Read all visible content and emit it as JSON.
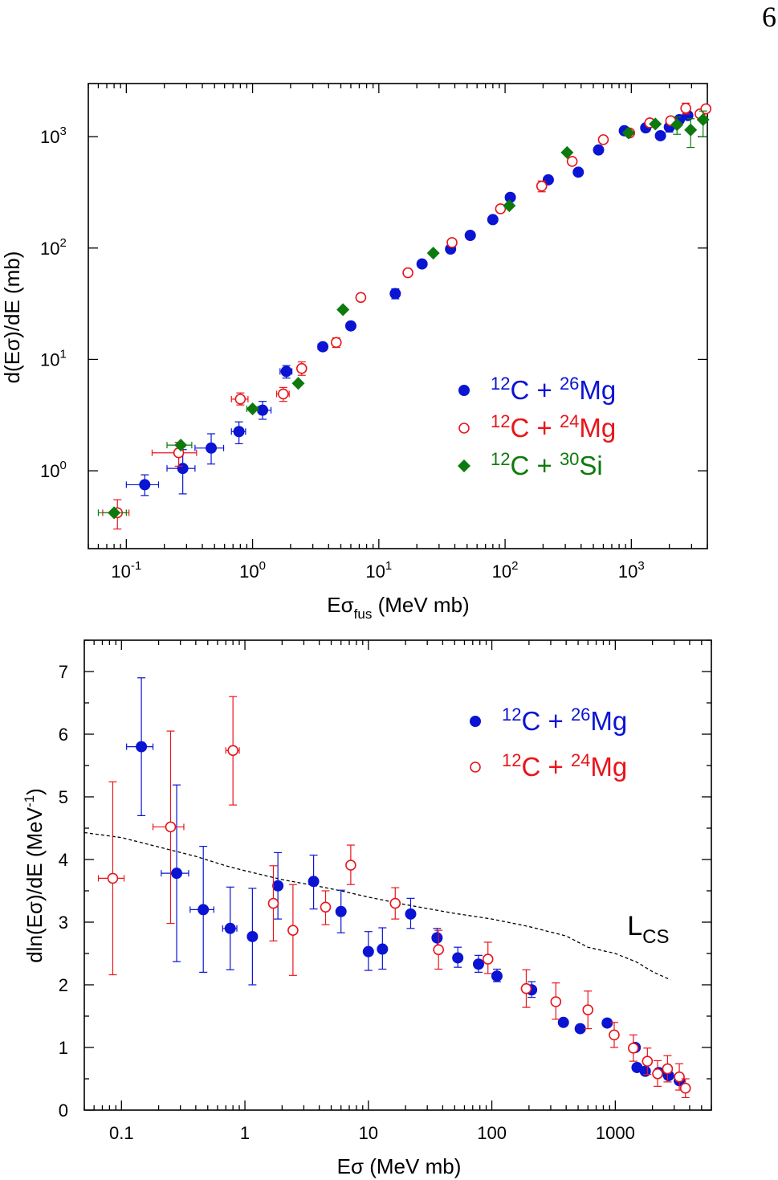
{
  "page_number": "6",
  "chart_data": [
    {
      "type": "scatter",
      "scale": "log-log",
      "xlabel": "Eσfus (MeV mb)",
      "xlabel_main": "Eσ",
      "xlabel_sub": "fus",
      "xlabel_units": " (MeV mb)",
      "ylabel": "d(Eσ)/dE  (mb)",
      "xlim": [
        0.05,
        4000
      ],
      "ylim": [
        0.2,
        3000
      ],
      "x_ticks": [
        {
          "value": 0.1,
          "base": "10",
          "exp": "-1"
        },
        {
          "value": 1,
          "base": "10",
          "exp": "0"
        },
        {
          "value": 10,
          "base": "10",
          "exp": "1"
        },
        {
          "value": 100,
          "base": "10",
          "exp": "2"
        },
        {
          "value": 1000,
          "base": "10",
          "exp": "3"
        }
      ],
      "y_ticks": [
        {
          "value": 1,
          "base": "10",
          "exp": "0"
        },
        {
          "value": 10,
          "base": "10",
          "exp": "1"
        },
        {
          "value": 100,
          "base": "10",
          "exp": "2"
        },
        {
          "value": 1000,
          "base": "10",
          "exp": "3"
        }
      ],
      "legend": "right-lower",
      "series": [
        {
          "name": "12C + 26Mg",
          "sup1": "12",
          "mid": "C + ",
          "sup2": "26",
          "tail": "Mg",
          "color": "#0a14d2",
          "marker": "filled-circle",
          "points": [
            {
              "x": 0.14,
              "y": 0.75,
              "xerr": 0.04,
              "ylo": 0.6,
              "yhi": 0.92
            },
            {
              "x": 0.28,
              "y": 1.05,
              "xerr": 0.07,
              "ylo": 0.62,
              "yhi": 1.55
            },
            {
              "x": 0.47,
              "y": 1.6,
              "xerr": 0.12,
              "ylo": 1.15,
              "yhi": 2.15
            },
            {
              "x": 0.78,
              "y": 2.25,
              "xerr": 0.1,
              "ylo": 1.75,
              "yhi": 2.75
            },
            {
              "x": 1.2,
              "y": 3.5,
              "xerr": 0.2,
              "ylo": 2.9,
              "yhi": 4.2
            },
            {
              "x": 1.85,
              "y": 7.8,
              "xerr": 0.2,
              "ylo": 6.8,
              "yhi": 8.8
            },
            {
              "x": 3.6,
              "y": 13,
              "xerr": 0.3,
              "ylo": 12,
              "yhi": 14
            },
            {
              "x": 6.0,
              "y": 20
            },
            {
              "x": 13.5,
              "y": 39,
              "ylo": 35,
              "yhi": 43
            },
            {
              "x": 22,
              "y": 72
            },
            {
              "x": 37,
              "y": 98
            },
            {
              "x": 53,
              "y": 130
            },
            {
              "x": 80,
              "y": 180
            },
            {
              "x": 110,
              "y": 285
            },
            {
              "x": 220,
              "y": 410
            },
            {
              "x": 380,
              "y": 480
            },
            {
              "x": 550,
              "y": 760
            },
            {
              "x": 880,
              "y": 1130
            },
            {
              "x": 1300,
              "y": 1200
            },
            {
              "x": 1700,
              "y": 1020
            },
            {
              "x": 2000,
              "y": 1220,
              "ylo": 1100,
              "yhi": 1350
            },
            {
              "x": 2400,
              "y": 1420
            },
            {
              "x": 2800,
              "y": 1550
            }
          ]
        },
        {
          "name": "12C + 24Mg",
          "sup1": "12",
          "mid": "C + ",
          "sup2": "24",
          "tail": "Mg",
          "color": "#e8151b",
          "marker": "open-circle",
          "points": [
            {
              "x": 0.085,
              "y": 0.42,
              "xerr": 0.02,
              "ylo": 0.3,
              "yhi": 0.55
            },
            {
              "x": 0.26,
              "y": 1.45,
              "xerr": 0.1,
              "ylo": 1.1,
              "yhi": 1.8
            },
            {
              "x": 0.8,
              "y": 4.4,
              "xerr": 0.12,
              "ylo": 3.9,
              "yhi": 5.0
            },
            {
              "x": 1.75,
              "y": 4.9,
              "xerr": 0.2,
              "ylo": 4.2,
              "yhi": 5.6
            },
            {
              "x": 2.45,
              "y": 8.3,
              "ylo": 7.2,
              "yhi": 9.5
            },
            {
              "x": 4.6,
              "y": 14.2,
              "ylo": 12.8,
              "yhi": 15.6
            },
            {
              "x": 7.2,
              "y": 36
            },
            {
              "x": 17,
              "y": 60
            },
            {
              "x": 38,
              "y": 112
            },
            {
              "x": 92,
              "y": 225
            },
            {
              "x": 195,
              "y": 360,
              "ylo": 320,
              "yhi": 400
            },
            {
              "x": 340,
              "y": 600
            },
            {
              "x": 600,
              "y": 940
            },
            {
              "x": 970,
              "y": 1080
            },
            {
              "x": 1400,
              "y": 1330
            },
            {
              "x": 2050,
              "y": 1390
            },
            {
              "x": 2700,
              "y": 1800,
              "ylo": 1600,
              "yhi": 2000
            },
            {
              "x": 3500,
              "y": 1600
            },
            {
              "x": 3900,
              "y": 1780
            }
          ]
        },
        {
          "name": "12C + 30Si",
          "sup1": "12",
          "mid": "C + ",
          "sup2": "30",
          "tail": "Si",
          "color": "#0d7a0d",
          "marker": "filled-diamond",
          "points": [
            {
              "x": 0.08,
              "y": 0.42,
              "xerr": 0.02
            },
            {
              "x": 0.27,
              "y": 1.7,
              "xerr": 0.06
            },
            {
              "x": 1.0,
              "y": 3.6,
              "xerr": 0.1
            },
            {
              "x": 2.3,
              "y": 6.1
            },
            {
              "x": 5.2,
              "y": 28
            },
            {
              "x": 27,
              "y": 90
            },
            {
              "x": 108,
              "y": 240
            },
            {
              "x": 310,
              "y": 720
            },
            {
              "x": 950,
              "y": 1080
            },
            {
              "x": 1550,
              "y": 1300
            },
            {
              "x": 2300,
              "y": 1280,
              "ylo": 1050,
              "yhi": 1500
            },
            {
              "x": 2950,
              "y": 1150,
              "ylo": 800,
              "yhi": 1450
            },
            {
              "x": 3700,
              "y": 1420,
              "ylo": 1000,
              "yhi": 1700
            }
          ]
        }
      ]
    },
    {
      "type": "scatter",
      "scale": "log-x",
      "xlabel": "Eσ (MeV mb)",
      "ylabel": "dln(Eσ)/dE  (MeV-1)",
      "ylabel_main": "dln(Eσ)/dE  (MeV",
      "ylabel_sup": "-1",
      "ylabel_end": ")",
      "xlim": [
        0.05,
        6000
      ],
      "ylim": [
        0,
        7.5
      ],
      "x_ticks": [
        {
          "value": 0.1,
          "label": "0.1"
        },
        {
          "value": 1,
          "label": "1"
        },
        {
          "value": 10,
          "label": "10"
        },
        {
          "value": 100,
          "label": "100"
        },
        {
          "value": 1000,
          "label": "1000"
        }
      ],
      "y_ticks": [
        {
          "value": 0,
          "label": "0"
        },
        {
          "value": 1,
          "label": "1"
        },
        {
          "value": 2,
          "label": "2"
        },
        {
          "value": 3,
          "label": "3"
        },
        {
          "value": 4,
          "label": "4"
        },
        {
          "value": 5,
          "label": "5"
        },
        {
          "value": 6,
          "label": "6"
        },
        {
          "value": 7,
          "label": "7"
        }
      ],
      "legend": "top-right",
      "annotation": {
        "main": "L",
        "sub": "CS",
        "x": 1250,
        "y": 2.95
      },
      "series": [
        {
          "name": "12C + 26Mg",
          "sup1": "12",
          "mid": "C + ",
          "sup2": "26",
          "tail": "Mg",
          "color": "#0a14d2",
          "marker": "filled-circle",
          "points": [
            {
              "x": 0.145,
              "y": 5.8,
              "xerr": 0.035,
              "ylo": 4.7,
              "yhi": 6.9
            },
            {
              "x": 0.28,
              "y": 3.78,
              "xerr": 0.07,
              "ylo": 2.37,
              "yhi": 5.19
            },
            {
              "x": 0.46,
              "y": 3.2,
              "xerr": 0.1,
              "ylo": 2.2,
              "yhi": 4.21
            },
            {
              "x": 0.76,
              "y": 2.9,
              "xerr": 0.1,
              "ylo": 2.24,
              "yhi": 3.56
            },
            {
              "x": 1.15,
              "y": 2.77,
              "ylo": 2.0,
              "yhi": 3.54
            },
            {
              "x": 1.85,
              "y": 3.58,
              "ylo": 3.05,
              "yhi": 4.11
            },
            {
              "x": 3.6,
              "y": 3.65,
              "ylo": 3.21,
              "yhi": 4.07
            },
            {
              "x": 6.0,
              "y": 3.17,
              "ylo": 2.83,
              "yhi": 3.51
            },
            {
              "x": 10,
              "y": 2.53,
              "ylo": 2.23,
              "yhi": 2.85
            },
            {
              "x": 13,
              "y": 2.57,
              "ylo": 2.25,
              "yhi": 2.91
            },
            {
              "x": 22,
              "y": 3.13,
              "ylo": 2.9,
              "yhi": 3.38
            },
            {
              "x": 36,
              "y": 2.75,
              "ylo": 2.55,
              "yhi": 2.9
            },
            {
              "x": 53,
              "y": 2.43,
              "ylo": 2.28,
              "yhi": 2.6
            },
            {
              "x": 78,
              "y": 2.33,
              "ylo": 2.2,
              "yhi": 2.47
            },
            {
              "x": 110,
              "y": 2.14,
              "ylo": 2.05,
              "yhi": 2.25
            },
            {
              "x": 210,
              "y": 1.92,
              "ylo": 1.8,
              "yhi": 2.05
            },
            {
              "x": 380,
              "y": 1.4
            },
            {
              "x": 520,
              "y": 1.3
            },
            {
              "x": 860,
              "y": 1.39
            },
            {
              "x": 1450,
              "y": 1.0
            },
            {
              "x": 1500,
              "y": 0.68
            },
            {
              "x": 1750,
              "y": 0.62
            },
            {
              "x": 2250,
              "y": 0.6
            },
            {
              "x": 2700,
              "y": 0.55
            },
            {
              "x": 3300,
              "y": 0.47
            }
          ]
        },
        {
          "name": "12C + 24Mg",
          "sup1": "12",
          "mid": "C + ",
          "sup2": "24",
          "tail": "Mg",
          "color": "#e8151b",
          "marker": "open-circle",
          "points": [
            {
              "x": 0.085,
              "y": 3.7,
              "xerr": 0.02,
              "ylo": 2.16,
              "yhi": 5.24
            },
            {
              "x": 0.25,
              "y": 4.52,
              "xerr": 0.07,
              "ylo": 2.98,
              "yhi": 6.05
            },
            {
              "x": 0.8,
              "y": 5.74,
              "xerr": 0.1,
              "ylo": 4.87,
              "yhi": 6.6
            },
            {
              "x": 1.7,
              "y": 3.3,
              "ylo": 2.7,
              "yhi": 3.9
            },
            {
              "x": 2.45,
              "y": 2.87,
              "ylo": 2.15,
              "yhi": 3.6
            },
            {
              "x": 4.5,
              "y": 3.24,
              "ylo": 2.96,
              "yhi": 3.5
            },
            {
              "x": 7.2,
              "y": 3.91,
              "ylo": 3.6,
              "yhi": 4.23
            },
            {
              "x": 16.5,
              "y": 3.3,
              "ylo": 3.05,
              "yhi": 3.55
            },
            {
              "x": 37,
              "y": 2.56,
              "ylo": 2.25,
              "yhi": 2.87
            },
            {
              "x": 93,
              "y": 2.41,
              "ylo": 2.18,
              "yhi": 2.68
            },
            {
              "x": 190,
              "y": 1.94,
              "ylo": 1.64,
              "yhi": 2.24
            },
            {
              "x": 330,
              "y": 1.73,
              "ylo": 1.45,
              "yhi": 2.03
            },
            {
              "x": 600,
              "y": 1.6,
              "ylo": 1.3,
              "yhi": 1.9
            },
            {
              "x": 980,
              "y": 1.2,
              "ylo": 1.0,
              "yhi": 1.4
            },
            {
              "x": 1400,
              "y": 0.99,
              "ylo": 0.78,
              "yhi": 1.2
            },
            {
              "x": 1820,
              "y": 0.78,
              "ylo": 0.57,
              "yhi": 0.99
            },
            {
              "x": 2200,
              "y": 0.58,
              "ylo": 0.38,
              "yhi": 0.79
            },
            {
              "x": 2650,
              "y": 0.66,
              "ylo": 0.45,
              "yhi": 0.87
            },
            {
              "x": 3300,
              "y": 0.53,
              "ylo": 0.32,
              "yhi": 0.74
            },
            {
              "x": 3700,
              "y": 0.35,
              "ylo": 0.2,
              "yhi": 0.5
            }
          ]
        }
      ],
      "curve": {
        "name": "LCS",
        "color": "#000000",
        "style": "dashed",
        "points": [
          {
            "x": 0.05,
            "y": 4.43
          },
          {
            "x": 0.1,
            "y": 4.35
          },
          {
            "x": 0.2,
            "y": 4.2
          },
          {
            "x": 0.4,
            "y": 4.05
          },
          {
            "x": 0.7,
            "y": 3.9
          },
          {
            "x": 1.0,
            "y": 3.82
          },
          {
            "x": 2.0,
            "y": 3.68
          },
          {
            "x": 4.0,
            "y": 3.57
          },
          {
            "x": 6.0,
            "y": 3.5
          },
          {
            "x": 10,
            "y": 3.4
          },
          {
            "x": 20,
            "y": 3.28
          },
          {
            "x": 50,
            "y": 3.14
          },
          {
            "x": 100,
            "y": 3.05
          },
          {
            "x": 200,
            "y": 2.93
          },
          {
            "x": 400,
            "y": 2.78
          },
          {
            "x": 600,
            "y": 2.6
          },
          {
            "x": 1000,
            "y": 2.5
          },
          {
            "x": 1500,
            "y": 2.36
          },
          {
            "x": 2000,
            "y": 2.21
          },
          {
            "x": 2800,
            "y": 2.08
          }
        ]
      }
    }
  ]
}
